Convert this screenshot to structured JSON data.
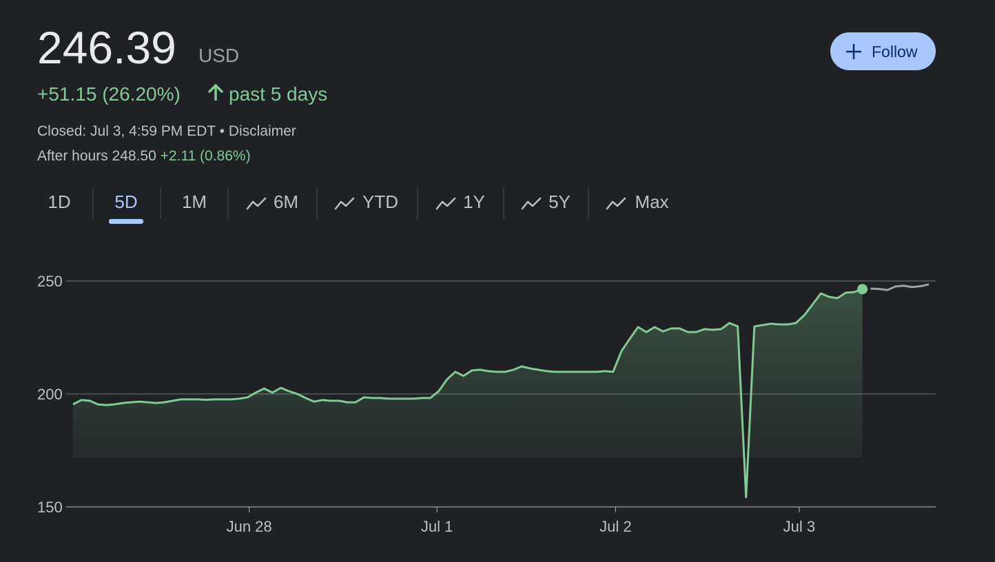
{
  "header": {
    "price": "246.39",
    "currency": "USD",
    "change": "+51.15 (26.20%)",
    "period": "past 5 days",
    "closed": "Closed: Jul 3, 4:59 PM EDT",
    "separator": "•",
    "disclaimer": "Disclaimer",
    "after_hours": "After hours 248.50",
    "after_hours_change": "+2.11 (0.86%)",
    "follow": "Follow"
  },
  "tabs": [
    "1D",
    "5D",
    "1M",
    "6M",
    "YTD",
    "1Y",
    "5Y",
    "Max"
  ],
  "chart_data": {
    "type": "line",
    "x": [
      0,
      1,
      2,
      3,
      4,
      5,
      6,
      7,
      8,
      9,
      10,
      11,
      12,
      13,
      14,
      15,
      16,
      17,
      18,
      19,
      20,
      21,
      22,
      23,
      24,
      25,
      26,
      27,
      28,
      29,
      30,
      31,
      32,
      33,
      34,
      35,
      36,
      37,
      38,
      39,
      40,
      41,
      42,
      43,
      44,
      45,
      46,
      47,
      48,
      49,
      50,
      51,
      52,
      53,
      54,
      55,
      56,
      57,
      58,
      59,
      60,
      61,
      62,
      63,
      64,
      65,
      66,
      67,
      68,
      69,
      70,
      71,
      72,
      73,
      74,
      75,
      76,
      77,
      78,
      79,
      80,
      81,
      82,
      83,
      84,
      85,
      86,
      87,
      88,
      89,
      90,
      91,
      92,
      93,
      94,
      95,
      96,
      97,
      98,
      99,
      100,
      101,
      102,
      103
    ],
    "series": [
      {
        "color": "#81c995",
        "values": [
          195.4,
          197.3,
          197,
          195.4,
          195.1,
          195.4,
          196,
          196.3,
          196.6,
          196.3,
          196,
          196.3,
          197,
          197.6,
          197.6,
          197.6,
          197.4,
          197.6,
          197.6,
          197.6,
          197.9,
          198.5,
          200.6,
          202.4,
          200.6,
          202.7,
          201.2,
          200,
          198.2,
          196.6,
          197.3,
          197,
          197,
          196.3,
          196.3,
          198.5,
          198.2,
          198.2,
          197.9,
          197.9,
          197.9,
          197.9,
          198.2,
          198.2,
          201.2,
          206.4,
          209.8,
          208,
          210.4,
          210.7,
          210.1,
          209.8,
          209.8,
          210.7,
          212.2,
          211.3,
          210.7,
          210.1,
          209.8,
          209.8,
          209.8,
          209.8,
          209.8,
          209.8,
          210.1,
          209.8,
          218.9,
          224.4,
          229.6,
          227.4,
          229.6,
          227.7,
          229,
          229,
          227.4,
          227.4,
          228.7,
          228.4,
          228.7,
          231.4,
          229.9,
          154.3,
          229.9,
          230.5,
          231.1,
          230.8,
          230.8,
          231.4,
          234.8,
          239.6,
          244.5,
          243,
          242.4,
          244.8,
          245.1,
          246.39,
          null,
          null,
          null,
          null,
          null,
          null,
          null,
          null
        ]
      },
      {
        "color": "#9aa0a6",
        "values": [
          null,
          null,
          null,
          null,
          null,
          null,
          null,
          null,
          null,
          null,
          null,
          null,
          null,
          null,
          null,
          null,
          null,
          null,
          null,
          null,
          null,
          null,
          null,
          null,
          null,
          null,
          null,
          null,
          null,
          null,
          null,
          null,
          null,
          null,
          null,
          null,
          null,
          null,
          null,
          null,
          null,
          null,
          null,
          null,
          null,
          null,
          null,
          null,
          null,
          null,
          null,
          null,
          null,
          null,
          null,
          null,
          null,
          null,
          null,
          null,
          null,
          null,
          null,
          null,
          null,
          null,
          null,
          null,
          null,
          null,
          null,
          null,
          null,
          null,
          null,
          null,
          null,
          null,
          null,
          null,
          null,
          null,
          null,
          null,
          null,
          null,
          null,
          null,
          null,
          null,
          null,
          null,
          null,
          null,
          null,
          null,
          246.6,
          246.5,
          246,
          247.6,
          247.9,
          247.3,
          247.7,
          248.5
        ]
      }
    ],
    "xlim": [
      0,
      103
    ],
    "xticks": [
      {
        "value": 21.2,
        "label": "Jun 28"
      },
      {
        "value": 43.8,
        "label": "Jul 1"
      },
      {
        "value": 65.3,
        "label": "Jul 2"
      },
      {
        "value": 87.4,
        "label": "Jul 3"
      }
    ],
    "ylim": [
      150,
      250
    ],
    "yticks": [
      150,
      200,
      250
    ],
    "grid": true
  }
}
